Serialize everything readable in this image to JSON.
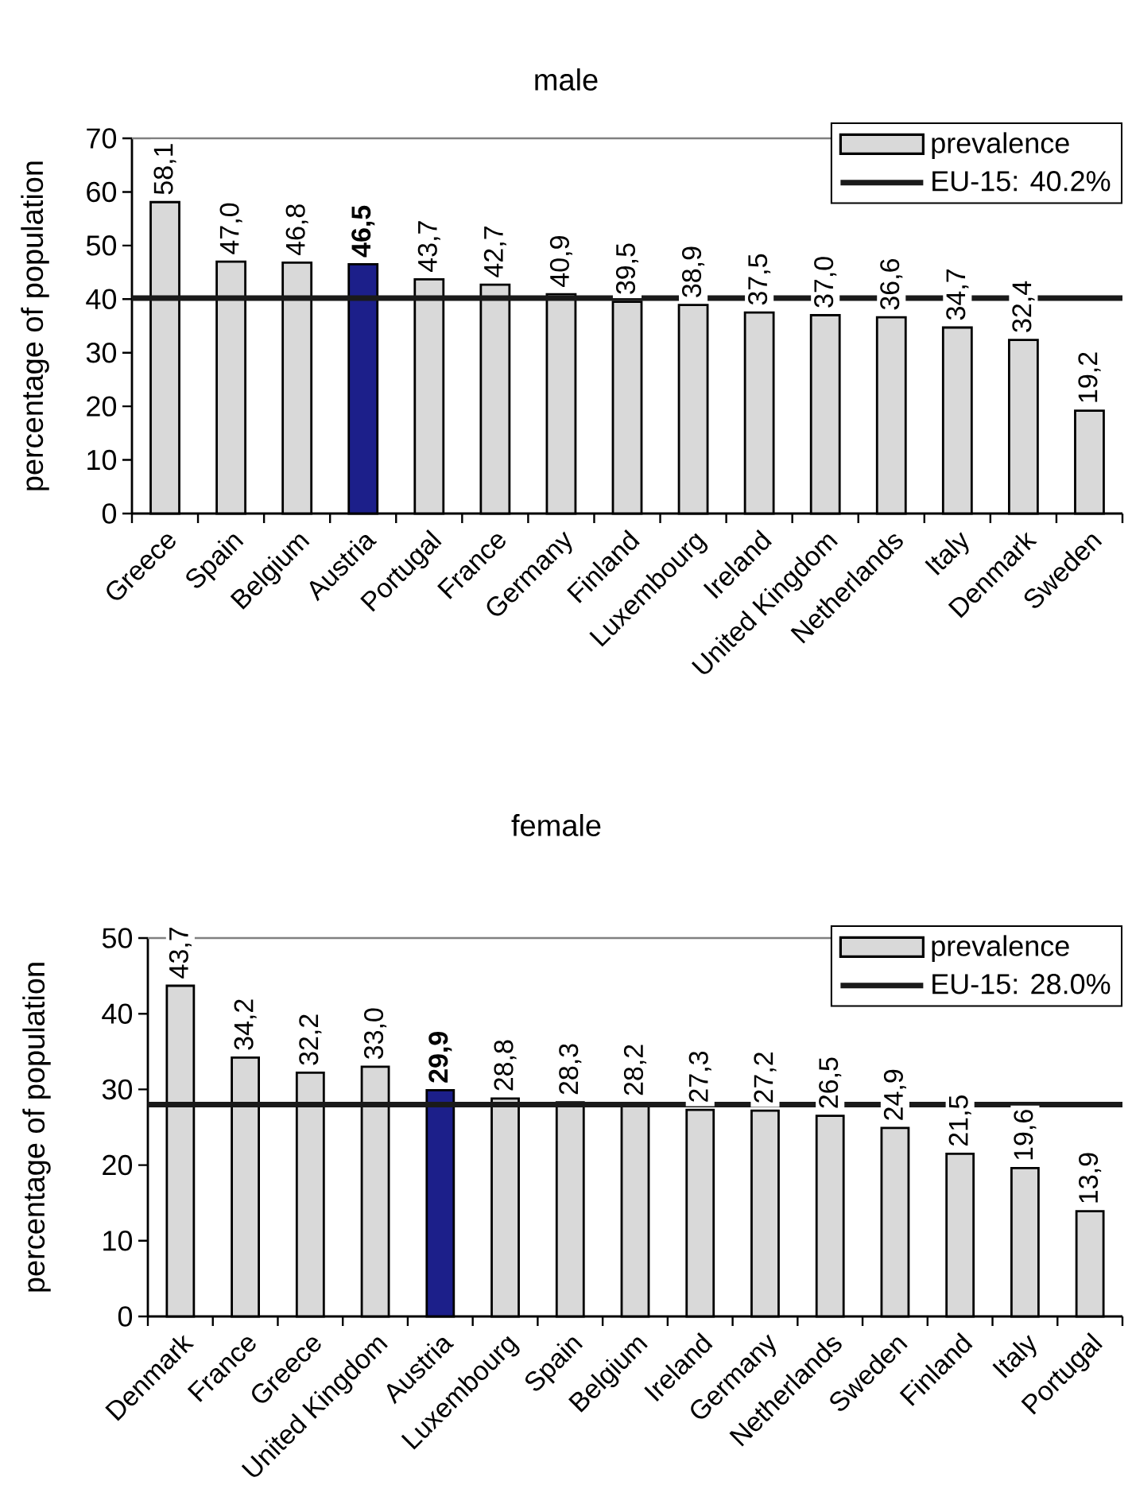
{
  "chart_data": [
    {
      "type": "bar",
      "title": "male",
      "ylabel": "percentage of population",
      "categories": [
        "Greece",
        "Spain",
        "Belgium",
        "Austria",
        "Portugal",
        "France",
        "Germany",
        "Finland",
        "Luxembourg",
        "Ireland",
        "United Kingdom",
        "Netherlands",
        "Italy",
        "Denmark",
        "Sweden"
      ],
      "series": [
        {
          "name": "prevalence",
          "colors": [
            "#d9d9d9",
            "#d9d9d9",
            "#d9d9d9",
            "#1c1f8a",
            "#d9d9d9",
            "#d9d9d9",
            "#d9d9d9",
            "#d9d9d9",
            "#d9d9d9",
            "#d9d9d9",
            "#d9d9d9",
            "#d9d9d9",
            "#d9d9d9",
            "#d9d9d9",
            "#d9d9d9"
          ],
          "values": [
            58.1,
            47.0,
            46.8,
            46.5,
            43.7,
            42.7,
            40.9,
            39.5,
            38.9,
            37.5,
            37.0,
            36.6,
            34.7,
            32.4,
            19.2
          ],
          "value_labels": [
            "58,1",
            "47,0",
            "46,8",
            "**46,5**",
            "43,7",
            "42,7",
            "40,9",
            "39,5",
            "38,9",
            "37,5",
            "37,0",
            "36,6",
            "34,7",
            "32,4",
            "19,2"
          ]
        }
      ],
      "ylim": [
        0,
        70
      ],
      "yticks": [
        0,
        10,
        20,
        30,
        40,
        50,
        60,
        70
      ],
      "ref_lines": [
        {
          "axis": "y",
          "value": 40.2,
          "label": "EU-15: 40.2%",
          "color": "#1a1a1a"
        }
      ],
      "legend": "top right"
    },
    {
      "type": "bar",
      "title": "female",
      "ylabel": "percentage of population",
      "categories": [
        "Denmark",
        "France",
        "Greece",
        "United Kingdom",
        "Austria",
        "Luxembourg",
        "Spain",
        "Belgium",
        "Ireland",
        "Germany",
        "Netherlands",
        "Sweden",
        "Finland",
        "Italy",
        "Portugal"
      ],
      "series": [
        {
          "name": "prevalence",
          "colors": [
            "#d9d9d9",
            "#d9d9d9",
            "#d9d9d9",
            "#d9d9d9",
            "#1c1f8a",
            "#d9d9d9",
            "#d9d9d9",
            "#d9d9d9",
            "#d9d9d9",
            "#d9d9d9",
            "#d9d9d9",
            "#d9d9d9",
            "#d9d9d9",
            "#d9d9d9",
            "#d9d9d9"
          ],
          "values": [
            43.7,
            34.2,
            32.2,
            33.0,
            29.9,
            28.8,
            28.3,
            28.2,
            27.3,
            27.2,
            26.5,
            24.9,
            21.5,
            19.6,
            13.9
          ],
          "value_labels": [
            "43,7",
            "34,2",
            "32,2",
            "33,0",
            "**29,9**",
            "28,8",
            "28,3",
            "28,2",
            "27,3",
            "27,2",
            "26,5",
            "24,9",
            "21,5",
            "19,6",
            "13,9"
          ]
        }
      ],
      "ylim": [
        0,
        50
      ],
      "yticks": [
        0,
        10,
        20,
        30,
        40,
        50
      ],
      "ref_lines": [
        {
          "axis": "y",
          "value": 28.0,
          "label": "EU-15: 28.0%",
          "color": "#1a1a1a"
        }
      ],
      "legend": "top right"
    }
  ]
}
